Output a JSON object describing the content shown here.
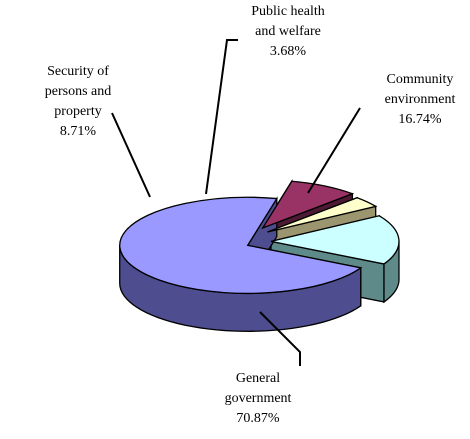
{
  "chart_data": {
    "type": "pie",
    "style": "3d-exploded",
    "legend": "none",
    "slices": [
      {
        "label_lines": [
          "General",
          "government"
        ],
        "value": 70.87,
        "value_label": "70.87%",
        "color": "#9999ff",
        "side_color": "#4d4d8f"
      },
      {
        "label_lines": [
          "Security of",
          "persons and",
          "property"
        ],
        "value": 8.71,
        "value_label": "8.71%",
        "color": "#993366",
        "side_color": "#4d1a33"
      },
      {
        "label_lines": [
          "Public health",
          "and welfare"
        ],
        "value": 3.68,
        "value_label": "3.68%",
        "color": "#ffffcc",
        "side_color": "#9b9570"
      },
      {
        "label_lines": [
          "Community",
          "environment"
        ],
        "value": 16.74,
        "value_label": "16.74%",
        "color": "#ccffff",
        "side_color": "#5f8a8a"
      }
    ]
  }
}
